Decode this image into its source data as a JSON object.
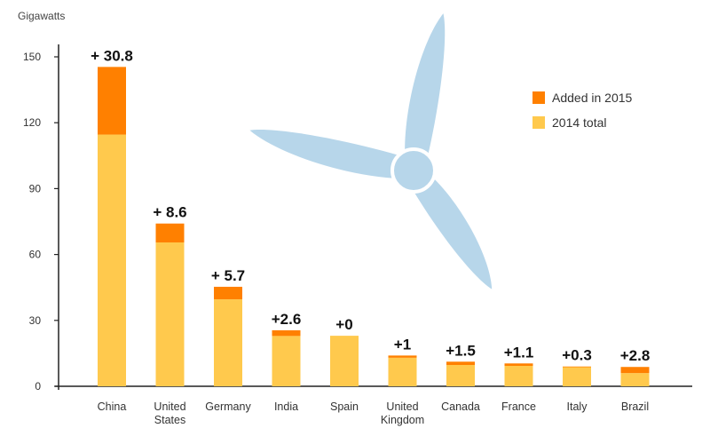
{
  "chart_data": {
    "type": "bar",
    "stacked": true,
    "title": "",
    "xlabel": "",
    "ylabel": "Gigawatts",
    "ylim": [
      0,
      160
    ],
    "yticks": [
      0,
      30,
      60,
      90,
      120,
      150
    ],
    "categories": [
      [
        "China"
      ],
      [
        "United",
        "States"
      ],
      [
        "Germany"
      ],
      [
        "India"
      ],
      [
        "Spain"
      ],
      [
        "United",
        "Kingdom"
      ],
      [
        "Canada"
      ],
      [
        "France"
      ],
      [
        "Italy"
      ],
      [
        "Brazil"
      ]
    ],
    "series": [
      {
        "name": "2014 total",
        "color": "#FFC94D",
        "values": [
          114.6,
          65.5,
          39.6,
          22.9,
          23.0,
          13.0,
          9.7,
          9.3,
          8.7,
          6.0
        ]
      },
      {
        "name": "Added in 2015",
        "color": "#FF8000",
        "values": [
          30.8,
          8.6,
          5.7,
          2.6,
          0,
          1.0,
          1.5,
          1.1,
          0.3,
          2.8
        ]
      }
    ],
    "data_labels": [
      "+ 30.8",
      "+ 8.6",
      "+ 5.7",
      "+2.6",
      "+0",
      "+1",
      "+1.5",
      "+1.1",
      "+0.3",
      "+2.8"
    ],
    "legend": {
      "position": "top-right",
      "entries": [
        {
          "label": "Added in 2015",
          "color": "#FF8000"
        },
        {
          "label": "2014 total",
          "color": "#FFC94D"
        }
      ]
    },
    "decoration": {
      "icon": "wind-turbine-icon",
      "color": "#B7D6EA"
    }
  }
}
